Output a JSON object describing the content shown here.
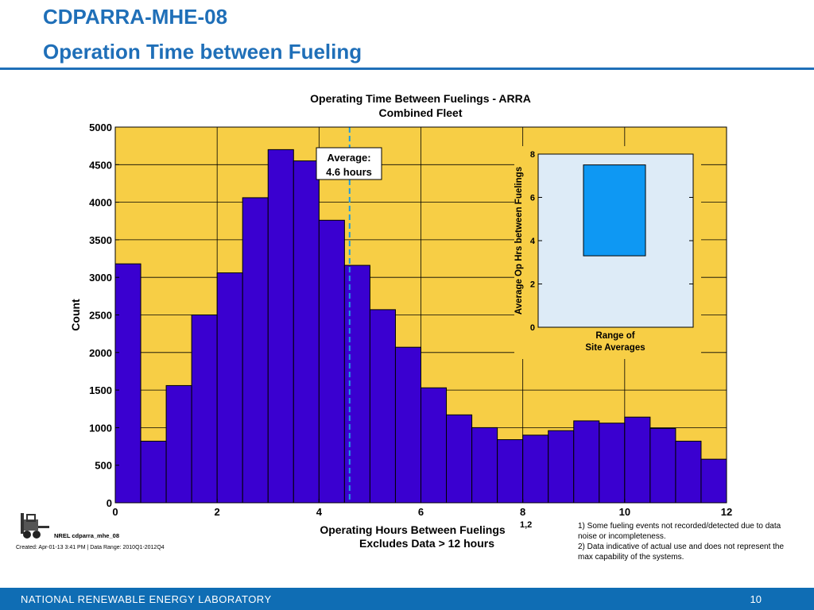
{
  "slide": {
    "title_line1": "CDPARRA-MHE-08",
    "title_line2": "Operation Time between Fueling"
  },
  "footer": {
    "org": "NATIONAL RENEWABLE ENERGY LABORATORY",
    "page": "10"
  },
  "meta": {
    "nrel_id": "NREL cdparra_mhe_08",
    "created": "Created: Apr-01-13  3:41 PM | Data Range: 2010Q1-2012Q4"
  },
  "notes": [
    "1) Some fueling events not recorded/detected due to data noise or incompleteness.",
    "2) Data indicative of actual use and does not represent the max capability of the systems."
  ],
  "colors": {
    "title_blue": "#1F6FB8",
    "plot_bg": "#F7CE45",
    "bar": "#3A00D0",
    "avg_line": "#1E9BE0",
    "inset_bg": "#DDEBF7",
    "inset_box": "#0E98F3"
  },
  "chart_data": [
    {
      "type": "bar",
      "title": [
        "Operating Time Between Fuelings - ARRA",
        "Combined Fleet"
      ],
      "xlabel": "Operating Hours Between Fuelings",
      "xlabel_superscript": "1,2",
      "xlabel_sub": "Excludes Data > 12 hours",
      "ylabel": "Count",
      "xlim": [
        0,
        12
      ],
      "ylim": [
        0,
        5000
      ],
      "xticks": [
        0,
        2,
        4,
        6,
        8,
        10,
        12
      ],
      "yticks": [
        0,
        500,
        1000,
        1500,
        2000,
        2500,
        3000,
        3500,
        4000,
        4500,
        5000
      ],
      "grid": true,
      "bin_width": 0.5,
      "bin_starts": [
        0,
        0.5,
        1,
        1.5,
        2,
        2.5,
        3,
        3.5,
        4,
        4.5,
        5,
        5.5,
        6,
        6.5,
        7,
        7.5,
        8,
        8.5,
        9,
        9.5,
        10,
        10.5,
        11,
        11.5
      ],
      "values": [
        3180,
        820,
        1560,
        2500,
        3060,
        4060,
        4700,
        4550,
        3760,
        3160,
        2570,
        2070,
        1530,
        1170,
        1000,
        840,
        900,
        960,
        1090,
        1060,
        1140,
        990,
        820,
        580
      ],
      "average": 4.6,
      "annotation": [
        "Average:",
        "4.6 hours"
      ]
    },
    {
      "type": "box",
      "ylabel": "Average Op Hrs between Fuelings",
      "xlabel": [
        "Range of",
        "Site Averages"
      ],
      "ylim": [
        0,
        8
      ],
      "yticks": [
        0,
        2,
        4,
        6,
        8
      ],
      "range": [
        3.3,
        7.5
      ]
    }
  ]
}
